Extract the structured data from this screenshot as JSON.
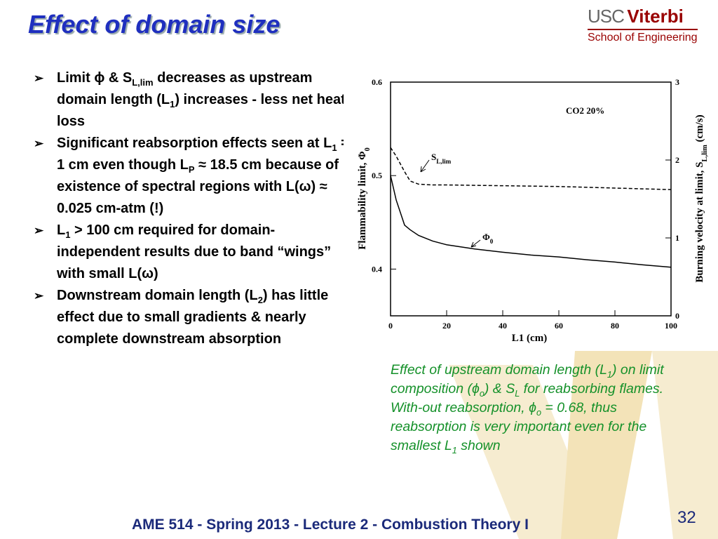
{
  "title": "Effect of domain size",
  "logo": {
    "usc": "USC",
    "viterbi": "Viterbi",
    "school": "School of Engineering"
  },
  "bullets": [
    [
      "Limit ϕ & S",
      {
        "sub": "L,lim"
      },
      " decreases as upstream domain length (L",
      {
        "sub": "1"
      },
      ") increases - less net heat loss"
    ],
    [
      " Significant reabsorption effects seen at L",
      {
        "sub": "1"
      },
      " = 1 cm even though L",
      {
        "sub": "P"
      },
      " ≈ 18.5 cm because of existence of spectral regions with L(ω) ≈ 0.025 cm-atm (!)"
    ],
    [
      "L",
      {
        "sub": "1"
      },
      " > 100 cm required for domain-independent results due to band “wings” with small L(ω)"
    ],
    [
      "Downstream domain length (L",
      {
        "sub": "2"
      },
      ") has little effect due to small gradients & nearly complete downstream absorption"
    ]
  ],
  "caption": [
    "Effect of upstream domain length (L",
    {
      "sub": "1"
    },
    ") on limit composition (ϕ",
    {
      "sub": "o"
    },
    ") & S",
    {
      "sub": "L"
    },
    " for reabsorbing flames.  With-out reabsorption, ϕ",
    {
      "sub": "o"
    },
    " = 0.68, thus reabsorption is very important even for the smallest L",
    {
      "sub": "1"
    },
    " shown"
  ],
  "footer": "AME 514 - Spring 2013 - Lecture 2 - Combustion Theory I",
  "page_number": 32,
  "chart_data": {
    "type": "line",
    "x": [
      0,
      2,
      5,
      7,
      10,
      15,
      20,
      30,
      40,
      50,
      60,
      70,
      80,
      90,
      100
    ],
    "series": [
      {
        "color": "#000000",
        "values": [
          0.5,
          0.474,
          0.447,
          0.442,
          0.436,
          0.43,
          0.426,
          0.4215,
          0.418,
          0.415,
          0.413,
          0.41,
          0.4075,
          0.4045,
          0.402
        ]
      },
      {
        "color": "#000000",
        "dashed": true,
        "axis": "y2",
        "values": [
          2.16,
          2.05,
          1.85,
          1.73,
          1.69,
          1.68,
          1.68,
          1.675,
          1.67,
          1.665,
          1.66,
          1.65,
          1.64,
          1.63,
          1.62
        ]
      }
    ],
    "xlim": [
      0,
      100
    ],
    "xticks": [
      0,
      20,
      40,
      60,
      80,
      100
    ],
    "ylim": [
      0.35,
      0.6
    ],
    "yticks": [
      0.4,
      0.5,
      0.6
    ],
    "y2lim": [
      0,
      3
    ],
    "y2ticks": [
      0,
      1,
      2,
      3
    ],
    "xlabel": "L1  (cm)",
    "ylabel": [
      "Flammability  limit,  Φ",
      {
        "sub": "0"
      }
    ],
    "y2label": [
      "Burning  velocity  at  limit,  S",
      {
        "sub": "L,lim"
      },
      "  (cm/s)"
    ],
    "annotations": [
      [
        "CO2  20%"
      ],
      [
        "S",
        {
          "sub": "L,lim"
        }
      ],
      [
        "Φ",
        {
          "sub": "0"
        }
      ]
    ]
  }
}
